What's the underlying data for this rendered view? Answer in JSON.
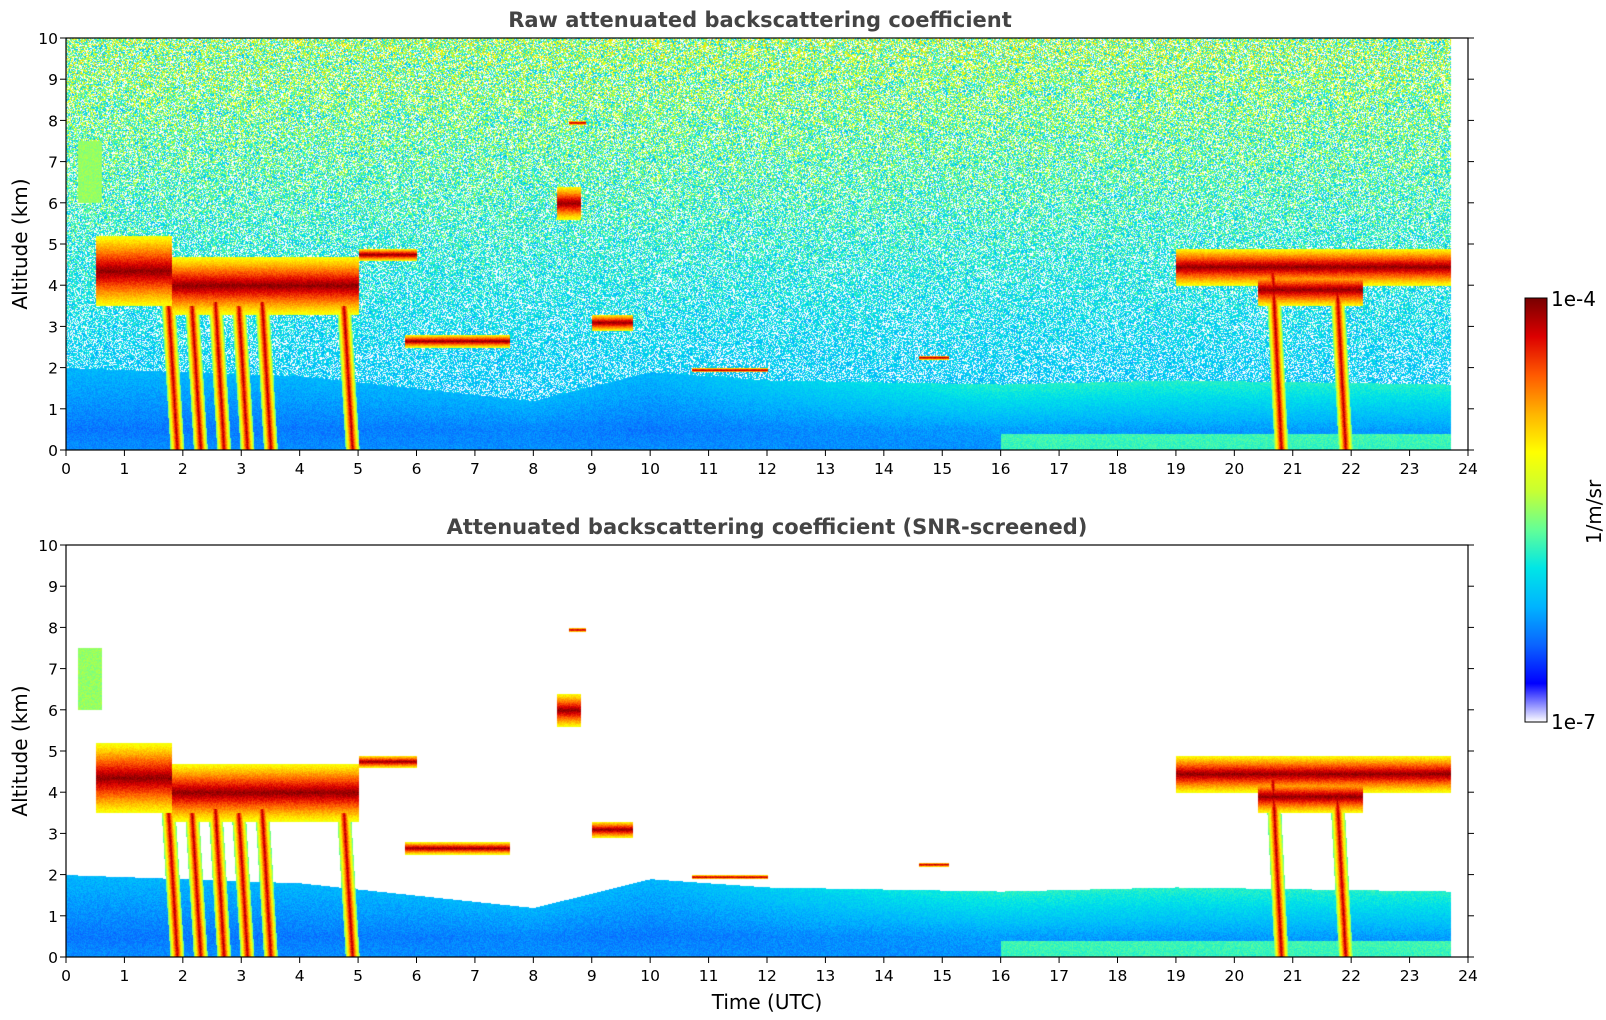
{
  "chart_data": [
    {
      "type": "heatmap",
      "title": "Raw attenuated backscattering coefficient",
      "xlabel": "",
      "ylabel": "Altitude (km)",
      "xlim": [
        0,
        24
      ],
      "ylim": [
        0,
        10
      ],
      "x_ticks": [
        "0",
        "1",
        "2",
        "3",
        "4",
        "5",
        "6",
        "7",
        "8",
        "9",
        "10",
        "11",
        "12",
        "13",
        "14",
        "15",
        "16",
        "17",
        "18",
        "19",
        "20",
        "21",
        "22",
        "23",
        "24"
      ],
      "y_ticks": [
        "0",
        "1",
        "2",
        "3",
        "4",
        "5",
        "6",
        "7",
        "8",
        "9",
        "10"
      ],
      "data_end_time": 23.7,
      "noise_level": "high (raw)",
      "layers": [
        {
          "kind": "aerosol-top-boundary",
          "points": [
            [
              0,
              2.0
            ],
            [
              4,
              1.8
            ],
            [
              8,
              1.2
            ],
            [
              10,
              1.9
            ],
            [
              12,
              1.7
            ],
            [
              16,
              1.6
            ],
            [
              19,
              1.7
            ],
            [
              23.7,
              1.6
            ]
          ]
        },
        {
          "kind": "elevated-aerosol",
          "t_start": 0.2,
          "t_end": 0.6,
          "z_bottom": 6.0,
          "z_top": 7.5
        },
        {
          "kind": "cloud",
          "t_start": 0.5,
          "t_end": 1.8,
          "z_bottom": 3.5,
          "z_top": 5.2
        },
        {
          "kind": "cloud",
          "t_start": 1.8,
          "t_end": 5.0,
          "z_bottom": 3.3,
          "z_top": 4.7
        },
        {
          "kind": "cloud",
          "t_start": 5.0,
          "t_end": 6.0,
          "z_bottom": 4.6,
          "z_top": 4.9
        },
        {
          "kind": "cloud",
          "t_start": 5.8,
          "t_end": 7.6,
          "z_bottom": 2.5,
          "z_top": 2.8
        },
        {
          "kind": "cloud",
          "t_start": 8.4,
          "t_end": 8.8,
          "z_bottom": 5.6,
          "z_top": 6.4
        },
        {
          "kind": "cloud",
          "t_start": 8.6,
          "t_end": 8.9,
          "z_bottom": 7.9,
          "z_top": 8.0
        },
        {
          "kind": "cloud",
          "t_start": 9.0,
          "t_end": 9.7,
          "z_bottom": 2.9,
          "z_top": 3.3
        },
        {
          "kind": "cloud",
          "t_start": 10.7,
          "t_end": 12.0,
          "z_bottom": 1.9,
          "z_top": 2.0
        },
        {
          "kind": "cloud",
          "t_start": 14.6,
          "t_end": 15.1,
          "z_bottom": 2.2,
          "z_top": 2.3
        },
        {
          "kind": "cloud",
          "t_start": 19.0,
          "t_end": 23.7,
          "z_bottom": 4.0,
          "z_top": 4.9
        },
        {
          "kind": "cloud",
          "t_start": 20.4,
          "t_end": 22.2,
          "z_bottom": 3.5,
          "z_top": 4.3
        },
        {
          "kind": "precipitation-streak",
          "t": 1.9,
          "z_top": 3.5
        },
        {
          "kind": "precipitation-streak",
          "t": 2.3,
          "z_top": 3.5
        },
        {
          "kind": "precipitation-streak",
          "t": 2.7,
          "z_top": 3.6
        },
        {
          "kind": "precipitation-streak",
          "t": 3.1,
          "z_top": 3.5
        },
        {
          "kind": "precipitation-streak",
          "t": 3.5,
          "z_top": 3.6
        },
        {
          "kind": "precipitation-streak",
          "t": 4.9,
          "z_top": 3.5
        },
        {
          "kind": "precipitation-streak",
          "t": 20.8,
          "z_top": 4.3
        },
        {
          "kind": "precipitation-streak",
          "t": 21.9,
          "z_top": 4.0
        }
      ]
    },
    {
      "type": "heatmap",
      "title": "Attenuated backscattering coefficient (SNR-screened)",
      "xlabel": "Time (UTC)",
      "ylabel": "Altitude (km)",
      "xlim": [
        0,
        24
      ],
      "ylim": [
        0,
        10
      ],
      "x_ticks": [
        "0",
        "1",
        "2",
        "3",
        "4",
        "5",
        "6",
        "7",
        "8",
        "9",
        "10",
        "11",
        "12",
        "13",
        "14",
        "15",
        "16",
        "17",
        "18",
        "19",
        "20",
        "21",
        "22",
        "23",
        "24"
      ],
      "y_ticks": [
        "0",
        "1",
        "2",
        "3",
        "4",
        "5",
        "6",
        "7",
        "8",
        "9",
        "10"
      ],
      "data_end_time": 23.7,
      "noise_level": "screened (low SNR removed)"
    }
  ],
  "colorbar": {
    "min_label": "1e-7",
    "max_label": "1e-4",
    "unit": "1/m/sr",
    "scale": "log",
    "min": 1e-07,
    "max": 0.0001,
    "colormap": [
      "#ffffff",
      "#0000ff",
      "#0a64ff",
      "#00b4ff",
      "#00e6e6",
      "#64ff96",
      "#c8ff32",
      "#ffff00",
      "#ffb400",
      "#ff5a00",
      "#dc0000",
      "#780000"
    ]
  }
}
